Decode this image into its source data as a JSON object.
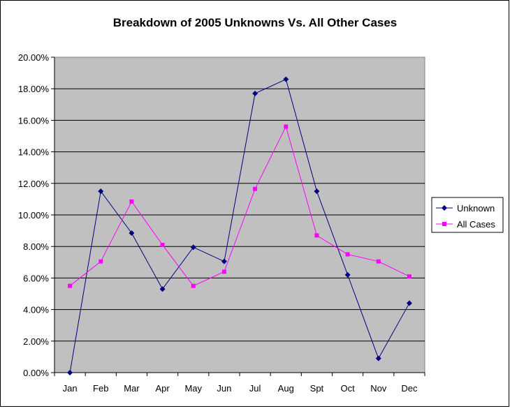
{
  "chart_data": {
    "type": "line",
    "title": "Breakdown of 2005 Unknowns Vs. All Other Cases",
    "xlabel": "",
    "ylabel": "",
    "categories": [
      "Jan",
      "Feb",
      "Mar",
      "Apr",
      "May",
      "Jun",
      "Jul",
      "Aug",
      "Spt",
      "Oct",
      "Nov",
      "Dec"
    ],
    "ylim": [
      0,
      20
    ],
    "ytick_step": 2,
    "ytick_format": "percent-2dp",
    "grid": true,
    "legend": "right",
    "plot_background": "#c0c0c0",
    "series": [
      {
        "name": "Unknown",
        "color": "#000080",
        "marker": "diamond",
        "values": [
          0.0,
          11.5,
          8.85,
          5.3,
          7.95,
          7.05,
          17.7,
          18.6,
          11.5,
          6.2,
          0.9,
          4.4
        ]
      },
      {
        "name": "All Cases",
        "color": "#ff00ff",
        "marker": "square",
        "values": [
          5.5,
          7.05,
          10.85,
          8.1,
          5.5,
          6.4,
          11.65,
          15.6,
          8.7,
          7.5,
          7.05,
          6.1
        ]
      }
    ]
  }
}
